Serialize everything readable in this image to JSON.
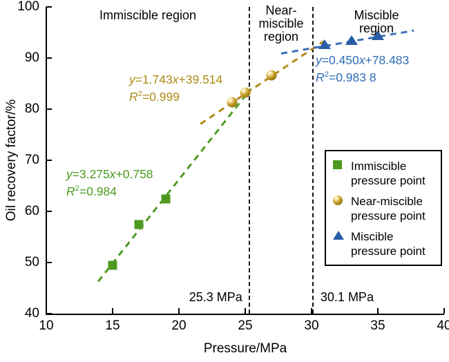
{
  "chart_data": {
    "type": "scatter",
    "xlabel": "Pressure/MPa",
    "ylabel": "Oil recovery factor/%",
    "xlim": [
      10,
      40
    ],
    "ylim": [
      40,
      100
    ],
    "xticks": [
      10,
      15,
      20,
      25,
      30,
      35,
      40
    ],
    "yticks": [
      40,
      50,
      60,
      70,
      80,
      90,
      100
    ],
    "grid": false,
    "legend_position": "lower right",
    "series": [
      {
        "name": "Immiscible pressure point",
        "marker": "square",
        "color": "#4e9a21",
        "points": [
          [
            15,
            49.4
          ],
          [
            17,
            57.4
          ],
          [
            19,
            62.5
          ]
        ]
      },
      {
        "name": "Near-miscible pressure point",
        "marker": "sphere",
        "color": "#a8860f",
        "points": [
          [
            24,
            81.3
          ],
          [
            25,
            83.3
          ],
          [
            27,
            86.6
          ]
        ]
      },
      {
        "name": "Miscible pressure point",
        "marker": "triangle",
        "color": "#2b5ca8",
        "points": [
          [
            31,
            92.7
          ],
          [
            33,
            93.5
          ],
          [
            35,
            94.5
          ]
        ]
      }
    ],
    "trendlines": [
      {
        "name": "immiscible-fit",
        "slope": 3.275,
        "intercept": 0.758,
        "x_range": [
          13.9,
          25.4
        ],
        "color": "#4e9a21"
      },
      {
        "name": "near-miscible-fit",
        "slope": 1.743,
        "intercept": 39.514,
        "x_range": [
          21.6,
          30.9
        ],
        "color": "#b3891a"
      },
      {
        "name": "miscible-fit",
        "slope": 0.45,
        "intercept": 78.483,
        "x_range": [
          27.7,
          37.7
        ],
        "color": "#3a70b8"
      }
    ],
    "boundaries": [
      {
        "x": 25.3,
        "label": "25.3 MPa",
        "label_side": "left"
      },
      {
        "x": 30.1,
        "label": "30.1 MPa",
        "label_side": "right"
      }
    ]
  },
  "regions": {
    "immiscible": "Immiscible region",
    "near": "Near-\nmiscible\nregion",
    "miscible": "Miscible region"
  },
  "equations": {
    "immiscible": {
      "y": "y",
      "expr": "=3.275",
      "x": "x",
      "rest": "+0.758",
      "R": "R",
      "sup": "2",
      "r2": "=0.984",
      "color": "#4a9a1e"
    },
    "near": {
      "y": "y",
      "expr": "=1.743",
      "x": "x",
      "rest": "+39.514",
      "R": "R",
      "sup": "2",
      "r2": "=0.999",
      "color": "#ad8a15"
    },
    "miscible": {
      "y": "y",
      "expr": "=0.450",
      "x": "x",
      "rest": "+78.483",
      "R": "R",
      "sup": "2",
      "r2": "=0.983 8",
      "color": "#2f6db8"
    }
  },
  "legend": {
    "items": [
      {
        "marker": "square-icon",
        "label": "Immiscible\npressure point"
      },
      {
        "marker": "sphere-icon",
        "label": "Near-miscible\npressure point"
      },
      {
        "marker": "triangle-icon",
        "label": "Miscible\npressure point"
      }
    ]
  }
}
